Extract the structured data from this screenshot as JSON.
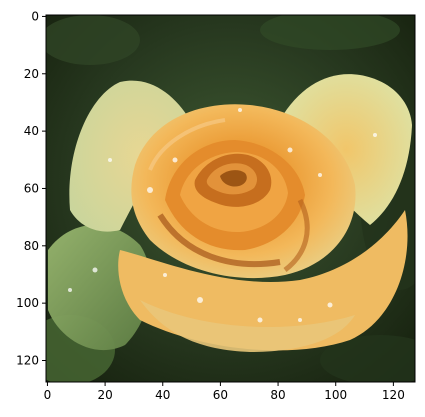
{
  "image": {
    "description_tokens": [
      "rose",
      "orange-yellow petals",
      "water droplets",
      "dark green foliage background"
    ],
    "colors": {
      "background_dark": "#1f3018",
      "background_mid": "#3a5230",
      "petal_orange": "#f0a43a",
      "petal_light": "#efe6b0",
      "petal_shadow": "#b8631f",
      "leaf_green": "#a8c07a",
      "axes_color": "#000000"
    }
  },
  "axes": {
    "x_ticks": [
      "0",
      "20",
      "40",
      "60",
      "80",
      "100",
      "120"
    ],
    "y_ticks": [
      "0",
      "20",
      "40",
      "60",
      "80",
      "100",
      "120"
    ],
    "x_tick_values": [
      0,
      20,
      40,
      60,
      80,
      100,
      120
    ],
    "y_tick_values": [
      0,
      20,
      40,
      60,
      80,
      100,
      120
    ],
    "xlim": [
      -0.5,
      127.5
    ],
    "ylim": [
      127.5,
      -0.5
    ]
  }
}
